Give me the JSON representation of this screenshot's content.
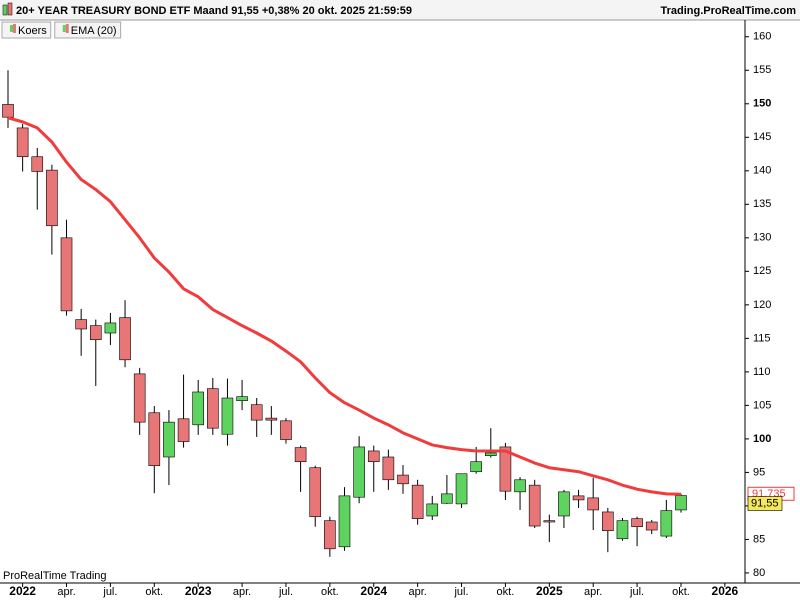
{
  "chart_data": {
    "type": "candlestick",
    "title": "20+ YEAR TREASURY BOND ETF Maand 91,55 +0,38% 20 okt. 2025 21:59:59",
    "source": "Trading.ProRealTime.com",
    "footer": "ProRealTime Trading",
    "categories": [
      null,
      "2022",
      null,
      null,
      "apr.",
      null,
      null,
      "jul.",
      null,
      null,
      "okt.",
      null,
      null,
      "2023",
      null,
      null,
      "apr.",
      null,
      null,
      "jul.",
      null,
      null,
      "okt.",
      null,
      null,
      "2024",
      null,
      null,
      "apr.",
      null,
      null,
      "jul.",
      null,
      null,
      "okt.",
      null,
      null,
      "2025",
      null,
      null,
      "apr.",
      null,
      null,
      "jul.",
      null,
      null,
      "okt.",
      null,
      null,
      "2026"
    ],
    "series": [
      {
        "name": "Koers",
        "up_color": "#5fd35f",
        "down_color": "#e87676",
        "open": [
          149.9,
          146.4,
          142.1,
          140.1,
          130,
          117.8,
          116.9,
          115.8,
          118.1,
          109.7,
          103.9,
          97.3,
          103,
          102.1,
          107.5,
          100.7,
          105.7,
          105.1,
          103.1,
          102.7,
          98.7,
          95.7,
          87.8,
          83.9,
          91.3,
          98.2,
          97.3,
          94.6,
          93.1,
          88.5,
          90.4,
          90.3,
          95.1,
          97.5,
          98.8,
          92.1,
          93.1,
          87.8,
          88.5,
          91.5,
          91.2,
          89.1,
          85.1,
          88.1,
          87.6,
          85.5,
          89.4,
          null,
          null,
          null
        ],
        "high": [
          155,
          147,
          143.4,
          140.9,
          132.7,
          119.4,
          117.8,
          118.8,
          120.7,
          110.6,
          104.9,
          104.3,
          109.6,
          108.8,
          109.1,
          109,
          108.8,
          106.1,
          104.9,
          103.1,
          99,
          96,
          88.4,
          92.8,
          100.4,
          99,
          98.4,
          96.1,
          93.9,
          91.5,
          94.6,
          94.8,
          98.8,
          101.6,
          99.4,
          94.3,
          93.9,
          88.7,
          92.4,
          92.4,
          94.2,
          89.7,
          88.2,
          88.4,
          87.9,
          90.9,
          91.8,
          null,
          null,
          null
        ],
        "low": [
          146.4,
          139.9,
          134.2,
          127.5,
          118.4,
          112.4,
          107.9,
          114,
          110.7,
          100.6,
          91.9,
          93.1,
          98.7,
          100.6,
          100.6,
          99,
          104.3,
          100.3,
          100.6,
          99.3,
          92.1,
          86.9,
          82.4,
          83.3,
          90.4,
          92.1,
          92.4,
          91.8,
          87.2,
          87.9,
          90.3,
          89.7,
          94.8,
          97.2,
          90.9,
          89.4,
          86.7,
          84.6,
          86.7,
          89.7,
          86.4,
          83.1,
          84.8,
          84,
          85.8,
          85.2,
          89,
          null,
          null,
          null
        ],
        "close": [
          148,
          142.1,
          139.9,
          131.8,
          119.1,
          116.4,
          114.8,
          117.3,
          111.8,
          102.5,
          96,
          102.5,
          99.6,
          107,
          101.6,
          106.1,
          106.3,
          102.8,
          102.8,
          99.9,
          96.6,
          88.4,
          83.6,
          91.5,
          98.8,
          96.6,
          93.9,
          93.3,
          88.1,
          90.3,
          91.8,
          94.8,
          96.6,
          97.9,
          92.2,
          93.9,
          87,
          87.6,
          92.1,
          90.9,
          89.4,
          86.3,
          87.8,
          86.9,
          86.4,
          89.3,
          91.55,
          null,
          null,
          null
        ]
      },
      {
        "name": "EMA (20)",
        "color": "#f03c3c",
        "values": [
          147.9,
          147.3,
          146.4,
          144.3,
          141.3,
          138.7,
          137.2,
          135.4,
          132.7,
          130,
          127,
          124.9,
          122.4,
          121.2,
          119.3,
          118.1,
          116.9,
          115.8,
          114.6,
          113.1,
          111.5,
          109.1,
          106.9,
          105.4,
          104.3,
          103.1,
          102.1,
          100.9,
          100,
          99.1,
          98.7,
          98.4,
          98.2,
          98.2,
          98.2,
          97.3,
          96.4,
          95.7,
          95.4,
          95.1,
          94.5,
          93.9,
          93.1,
          92.5,
          92.1,
          91.8,
          91.735,
          null,
          null,
          null
        ]
      }
    ],
    "price_marker": {
      "value": 91.55,
      "label": "91,55"
    },
    "ema_marker": {
      "value": 91.735,
      "label": "91,735"
    },
    "ylim": [
      78.5,
      162.5
    ],
    "yticks": [
      80,
      85,
      90,
      95,
      100,
      105,
      110,
      115,
      120,
      125,
      130,
      135,
      140,
      145,
      150,
      155,
      160
    ],
    "grid": false
  }
}
